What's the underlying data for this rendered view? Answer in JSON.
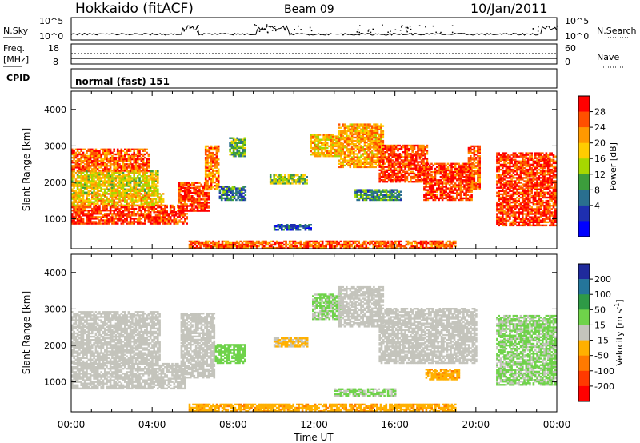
{
  "header": {
    "station": "Hokkaido (fitACF)",
    "beam": "Beam 09",
    "date": "10/Jan/2011"
  },
  "strip_nsky": {
    "label": "N.Sky",
    "right_label": "N.Search",
    "left_ticks": [
      "10^5",
      "10^0"
    ],
    "right_ticks": [
      "10^5",
      "10^0"
    ]
  },
  "strip_freq": {
    "label_top": "Freq.",
    "label_bottom": "[MHz]",
    "left_ticks": [
      "18",
      "8"
    ],
    "right_ticks": [
      "60",
      "0"
    ],
    "right_label": "Nave"
  },
  "strip_cpid": {
    "label": "CPID",
    "text": "normal (fast) 151"
  },
  "panels": {
    "power_ylabel": "Slant Range [km]",
    "velocity_ylabel": "Slant Range [km]",
    "y_ticks": [
      "1000",
      "2000",
      "3000",
      "4000"
    ],
    "x_ticks": [
      "00:00",
      "04:00",
      "08:00",
      "12:00",
      "16:00",
      "20:00",
      "00:00"
    ],
    "x_label": "Time UT"
  },
  "power_colorbar": {
    "label": "Power [dB]",
    "ticks": [
      "28",
      "24",
      "20",
      "16",
      "12",
      "8",
      "4"
    ],
    "colors": [
      "#ff0000",
      "#ff5000",
      "#ff9900",
      "#ffcc00",
      "#a6d800",
      "#3c9d3c",
      "#2a6f8f",
      "#1e2fb0",
      "#0000ff"
    ]
  },
  "velocity_colorbar": {
    "label": "Velocity [m s",
    "label_sup": "-1",
    "label_end": "]",
    "ticks": [
      "200",
      "100",
      "50",
      "15",
      "-15",
      "-50",
      "-100",
      "-200"
    ],
    "colors": [
      "#1f2a9c",
      "#24759a",
      "#2e9a46",
      "#6fd34a",
      "#c4c4bc",
      "#ffb000",
      "#ff7a00",
      "#ff3a00",
      "#ff0000"
    ]
  },
  "chart_data": {
    "type": "heatmap",
    "x_range_hours": [
      0,
      24
    ],
    "y_range_km": [
      180,
      4500
    ],
    "power_bands": [
      {
        "t0": 0.0,
        "t1": 5.7,
        "r0": 850,
        "r1": 1350,
        "level": 28
      },
      {
        "t0": 0.0,
        "t1": 4.5,
        "r0": 1350,
        "r1": 1700,
        "level": 20
      },
      {
        "t0": 0.0,
        "t1": 4.3,
        "r0": 1700,
        "r1": 2300,
        "level": 18
      },
      {
        "t0": 0.0,
        "t1": 3.8,
        "r0": 2300,
        "r1": 2900,
        "level": 26
      },
      {
        "t0": 5.3,
        "t1": 6.8,
        "r0": 1200,
        "r1": 2000,
        "level": 28
      },
      {
        "t0": 6.6,
        "t1": 7.3,
        "r0": 1800,
        "r1": 3000,
        "level": 24
      },
      {
        "t0": 7.3,
        "t1": 8.6,
        "r0": 1500,
        "r1": 1900,
        "level": 8
      },
      {
        "t0": 7.8,
        "t1": 8.6,
        "r0": 2700,
        "r1": 3200,
        "level": 12
      },
      {
        "t0": 9.8,
        "t1": 11.6,
        "r0": 1950,
        "r1": 2200,
        "level": 14
      },
      {
        "t0": 10.0,
        "t1": 11.8,
        "r0": 680,
        "r1": 820,
        "level": 6
      },
      {
        "t0": 11.8,
        "t1": 13.4,
        "r0": 2700,
        "r1": 3300,
        "level": 20
      },
      {
        "t0": 13.2,
        "t1": 15.4,
        "r0": 2400,
        "r1": 3600,
        "level": 22
      },
      {
        "t0": 15.2,
        "t1": 17.6,
        "r0": 2000,
        "r1": 3000,
        "level": 28
      },
      {
        "t0": 17.4,
        "t1": 19.8,
        "r0": 1500,
        "r1": 2500,
        "level": 28
      },
      {
        "t0": 19.6,
        "t1": 20.2,
        "r0": 1800,
        "r1": 3000,
        "level": 26
      },
      {
        "t0": 14.0,
        "t1": 16.3,
        "r0": 1500,
        "r1": 1800,
        "level": 10
      },
      {
        "t0": 21.0,
        "t1": 23.9,
        "r0": 800,
        "r1": 2800,
        "level": 28
      },
      {
        "t0": 5.8,
        "t1": 19.0,
        "r0": 180,
        "r1": 380,
        "level": 26
      }
    ],
    "velocity_bands": [
      {
        "t0": 0.0,
        "t1": 5.6,
        "r0": 800,
        "r1": 1500,
        "level": 0
      },
      {
        "t0": 0.0,
        "t1": 4.4,
        "r0": 1500,
        "r1": 2900,
        "level": 0
      },
      {
        "t0": 5.4,
        "t1": 7.1,
        "r0": 1100,
        "r1": 2900,
        "level": 0
      },
      {
        "t0": 7.1,
        "t1": 8.6,
        "r0": 1500,
        "r1": 2000,
        "level": 30
      },
      {
        "t0": 10.0,
        "t1": 11.7,
        "r0": 1950,
        "r1": 2200,
        "level": -20
      },
      {
        "t0": 11.9,
        "t1": 13.3,
        "r0": 2700,
        "r1": 3400,
        "level": 20
      },
      {
        "t0": 13.2,
        "t1": 15.4,
        "r0": 2500,
        "r1": 3600,
        "level": 0
      },
      {
        "t0": 15.2,
        "t1": 20.0,
        "r0": 1500,
        "r1": 3000,
        "level": 0
      },
      {
        "t0": 17.5,
        "t1": 19.2,
        "r0": 1050,
        "r1": 1350,
        "level": -40
      },
      {
        "t0": 21.0,
        "t1": 23.9,
        "r0": 900,
        "r1": 2800,
        "level": 20
      },
      {
        "t0": 5.8,
        "t1": 19.0,
        "r0": 180,
        "r1": 380,
        "level": -40
      },
      {
        "t0": 13.0,
        "t1": 16.0,
        "r0": 600,
        "r1": 800,
        "level": 20
      }
    ]
  }
}
